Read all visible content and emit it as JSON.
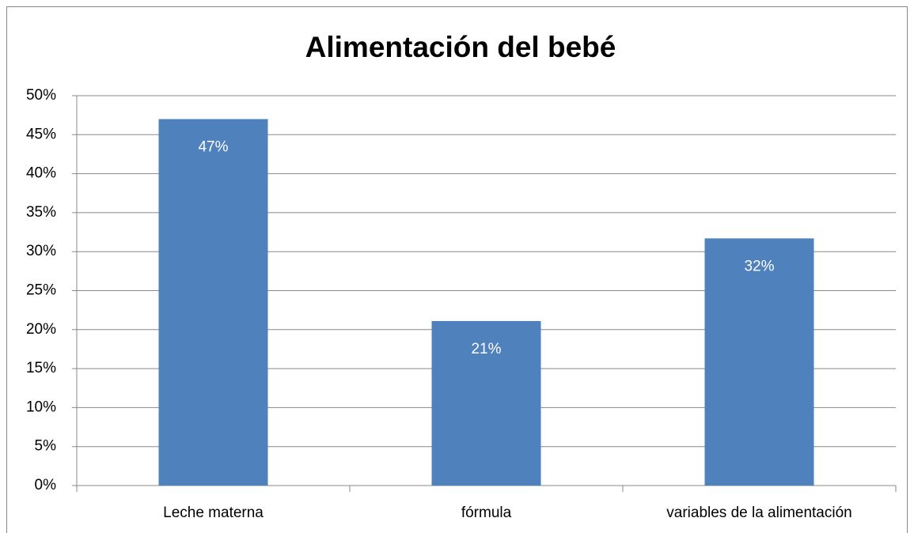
{
  "chart_data": {
    "type": "bar",
    "title": "Alimentación del bebé",
    "categories": [
      "Leche materna",
      "fórmula",
      "variables de la alimentación"
    ],
    "values": [
      47,
      21.1,
      31.7
    ],
    "value_labels": [
      "47%",
      "21%",
      "32%"
    ],
    "color": "#4f81bd",
    "ylim": [
      0,
      50
    ],
    "yticks": [
      {
        "value": 0,
        "label": "0%"
      },
      {
        "value": 5,
        "label": "5%"
      },
      {
        "value": 10,
        "label": "10%"
      },
      {
        "value": 15,
        "label": "15%"
      },
      {
        "value": 20,
        "label": "20%"
      },
      {
        "value": 25,
        "label": "25%"
      },
      {
        "value": 30,
        "label": "30%"
      },
      {
        "value": 35,
        "label": "35%"
      },
      {
        "value": 40,
        "label": "40%"
      },
      {
        "value": 45,
        "label": "45%"
      },
      {
        "value": 50,
        "label": "50%"
      }
    ],
    "grid": true
  }
}
